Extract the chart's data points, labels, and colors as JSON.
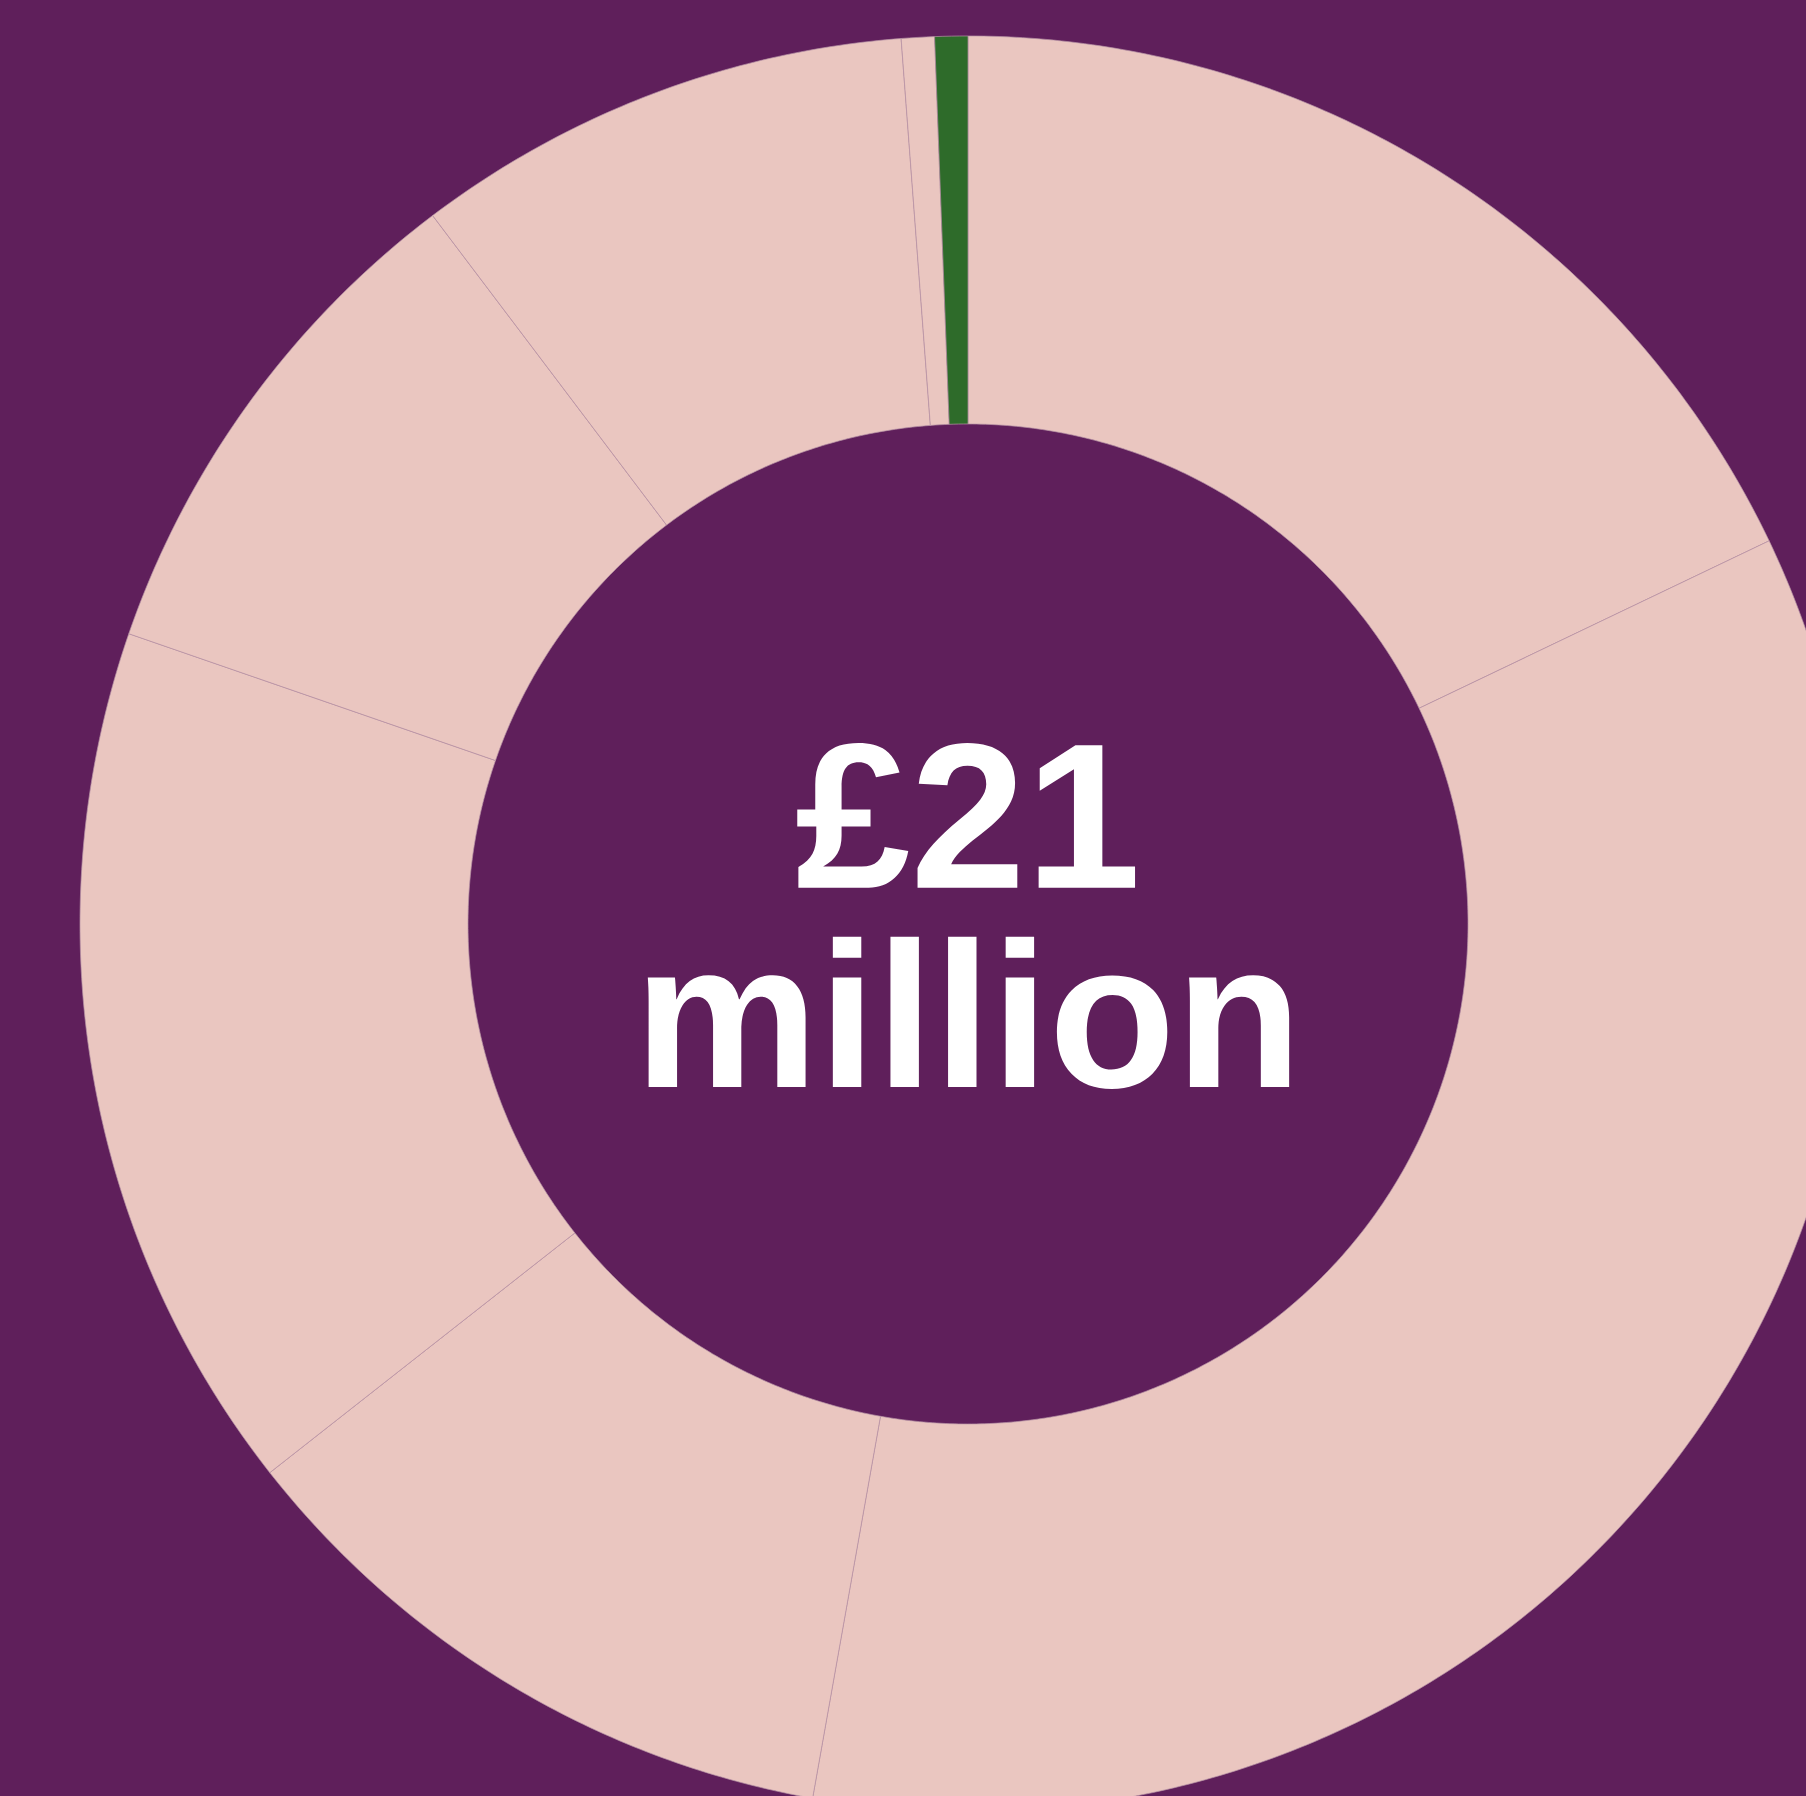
{
  "chart_data": {
    "type": "donut",
    "categories": [
      null,
      null,
      null,
      null,
      null,
      null,
      null,
      null
    ],
    "values": [
      17.9,
      34.9,
      11.6,
      15.9,
      9.4,
      9.1,
      0.6,
      0.6
    ],
    "colors": [
      "#eac6c0",
      "#eac6c0",
      "#eac6c0",
      "#eac6c0",
      "#eac6c0",
      "#eac6c0",
      "#eac6c0",
      "#2e6b2a"
    ],
    "annotations": [
      "£21 million"
    ]
  }
}
